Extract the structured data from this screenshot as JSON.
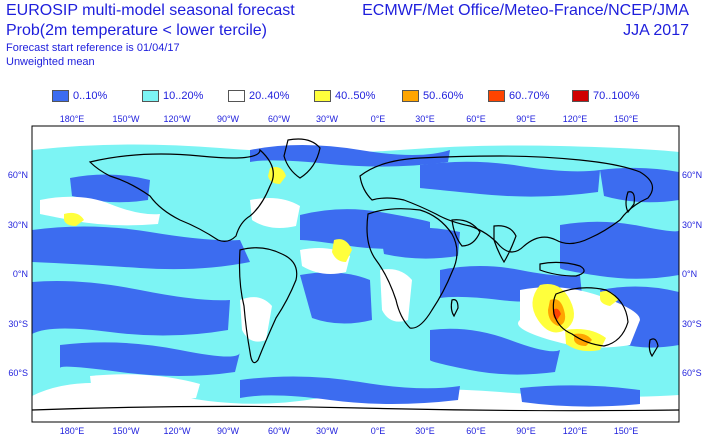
{
  "header": {
    "title_line1": "EUROSIP multi-model seasonal forecast",
    "title_line2": "Prob(2m temperature < lower tercile)",
    "forecast_ref": "Forecast start reference is 01/04/17",
    "weighting": "Unweighted mean",
    "centres": "ECMWF/Met Office/Meteo-France/NCEP/JMA",
    "season": "JJA 2017"
  },
  "legend": [
    {
      "label": "0..10%",
      "color": "#3c6cf0"
    },
    {
      "label": "10..20%",
      "color": "#7cf4f4"
    },
    {
      "label": "20..40%",
      "color": "#ffffff"
    },
    {
      "label": "40..50%",
      "color": "#ffff3c"
    },
    {
      "label": "50..60%",
      "color": "#ffa500"
    },
    {
      "label": "60..70%",
      "color": "#ff4400"
    },
    {
      "label": "70..100%",
      "color": "#d00000"
    }
  ],
  "map": {
    "lon_labels": [
      "180°E",
      "150°W",
      "120°W",
      "90°W",
      "60°W",
      "30°W",
      "0°E",
      "30°E",
      "60°E",
      "90°E",
      "120°E",
      "150°E"
    ],
    "lat_labels": [
      "60°N",
      "30°N",
      "0°N",
      "30°S",
      "60°S"
    ]
  }
}
